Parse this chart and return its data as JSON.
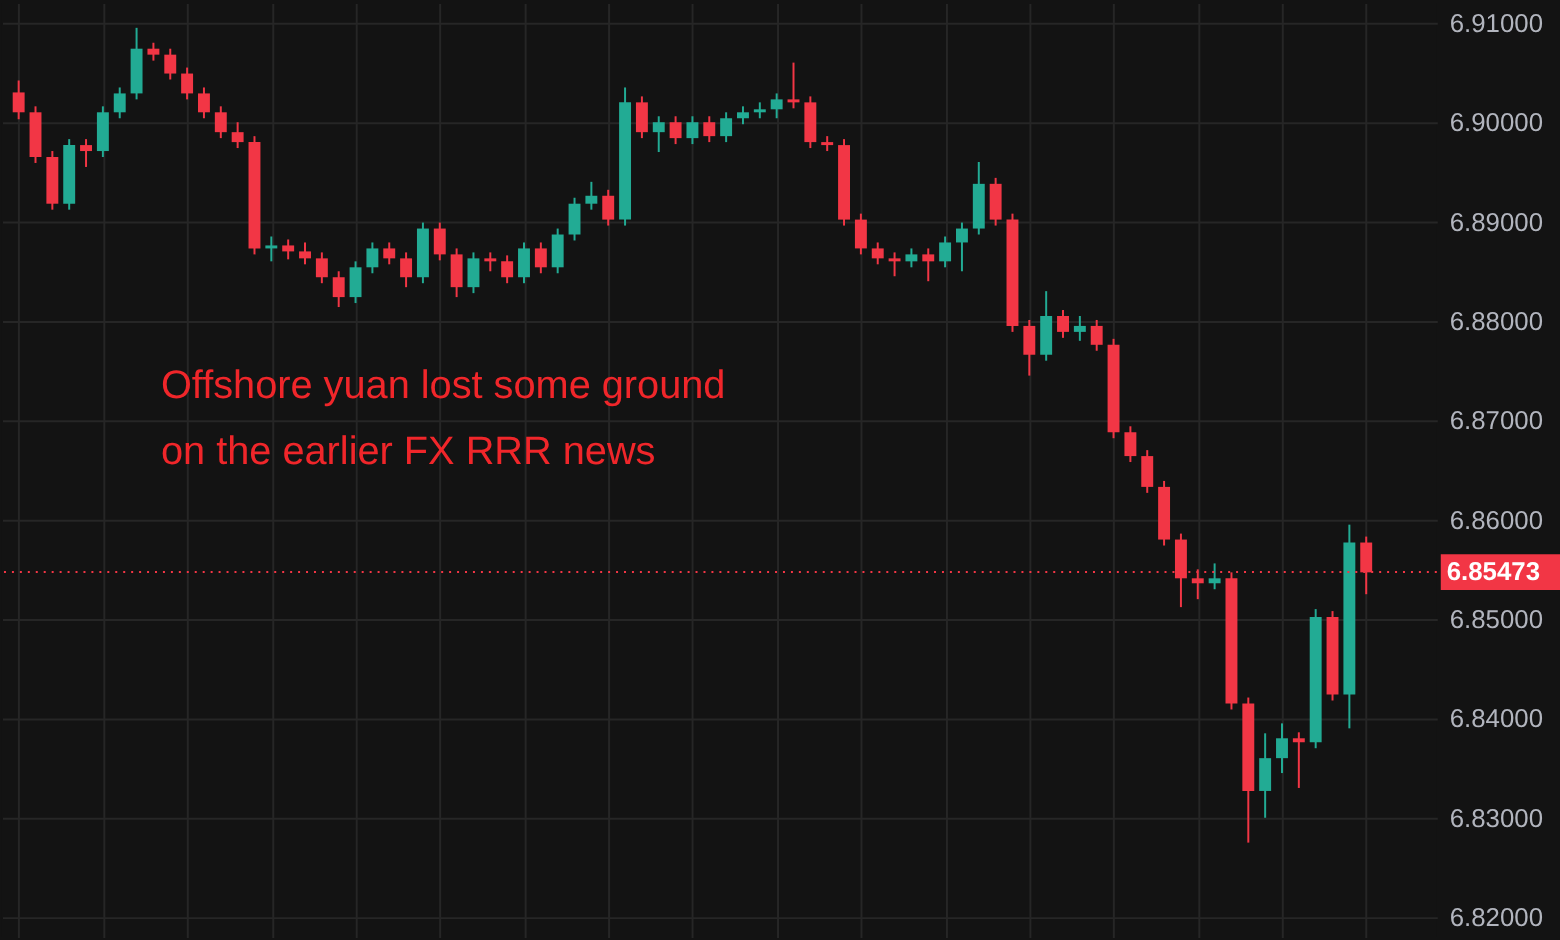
{
  "chart_data": {
    "type": "candlestick",
    "categories": [
      null,
      null,
      null,
      null,
      null,
      null,
      null,
      null,
      null,
      null,
      null,
      null,
      null,
      null,
      null,
      null,
      null,
      null,
      null,
      null,
      null,
      null,
      null,
      null,
      null,
      null,
      null,
      null,
      null,
      null,
      null,
      null,
      null,
      null,
      null,
      null,
      null,
      null,
      null,
      null,
      null,
      null,
      null,
      null,
      null,
      null,
      null,
      null,
      null,
      null,
      null,
      null,
      null,
      null,
      null,
      null,
      null,
      null,
      null,
      null,
      null,
      null,
      null,
      null,
      null,
      null,
      null,
      null,
      null,
      null,
      null,
      null,
      null,
      null,
      null,
      null,
      null,
      null,
      null,
      null,
      null
    ],
    "ohlc": [
      [
        6.903,
        6.9042,
        6.9003,
        6.901
      ],
      [
        6.901,
        6.9016,
        6.8959,
        6.8965
      ],
      [
        6.8965,
        6.8971,
        6.8912,
        6.8918
      ],
      [
        6.8918,
        6.8983,
        6.8912,
        6.8977
      ],
      [
        6.8977,
        6.8983,
        6.8955,
        6.8971
      ],
      [
        6.8971,
        6.9016,
        6.8965,
        6.901
      ],
      [
        6.901,
        6.9035,
        6.9004,
        6.9029
      ],
      [
        6.9029,
        6.9095,
        6.9023,
        6.9074
      ],
      [
        6.9074,
        6.908,
        6.9062,
        6.9068
      ],
      [
        6.9068,
        6.9074,
        6.9043,
        6.9049
      ],
      [
        6.9049,
        6.9055,
        6.9023,
        6.9029
      ],
      [
        6.9029,
        6.9035,
        6.9004,
        6.901
      ],
      [
        6.901,
        6.9016,
        6.8984,
        6.899
      ],
      [
        6.899,
        6.9,
        6.8974,
        6.898
      ],
      [
        6.898,
        6.8986,
        6.8867,
        6.8873
      ],
      [
        6.8873,
        6.8885,
        6.886,
        6.8876
      ],
      [
        6.8876,
        6.8882,
        6.8862,
        6.887
      ],
      [
        6.887,
        6.8879,
        6.8857,
        6.8863
      ],
      [
        6.8863,
        6.8869,
        6.8838,
        6.8844
      ],
      [
        6.8844,
        6.885,
        6.8814,
        6.8824
      ],
      [
        6.8824,
        6.886,
        6.8818,
        6.8854
      ],
      [
        6.8854,
        6.8879,
        6.8848,
        6.8873
      ],
      [
        6.8873,
        6.8879,
        6.8857,
        6.8863
      ],
      [
        6.8863,
        6.8869,
        6.8834,
        6.8844
      ],
      [
        6.8844,
        6.8899,
        6.8838,
        6.8893
      ],
      [
        6.8893,
        6.8899,
        6.8861,
        6.8867
      ],
      [
        6.8867,
        6.8873,
        6.8824,
        6.8834
      ],
      [
        6.8834,
        6.8869,
        6.8828,
        6.8863
      ],
      [
        6.8863,
        6.8869,
        6.885,
        6.886
      ],
      [
        6.886,
        6.8866,
        6.8838,
        6.8844
      ],
      [
        6.8844,
        6.8879,
        6.8838,
        6.8873
      ],
      [
        6.8873,
        6.8879,
        6.8848,
        6.8854
      ],
      [
        6.8854,
        6.8893,
        6.8848,
        6.8887
      ],
      [
        6.8887,
        6.8924,
        6.8881,
        6.8918
      ],
      [
        6.8918,
        6.894,
        6.8912,
        6.8926
      ],
      [
        6.8926,
        6.8932,
        6.8896,
        6.8902
      ],
      [
        6.8902,
        6.9035,
        6.8896,
        6.902
      ],
      [
        6.902,
        6.9026,
        6.8984,
        6.899
      ],
      [
        6.899,
        6.9006,
        6.897,
        6.9
      ],
      [
        6.9,
        6.9006,
        6.8978,
        6.8984
      ],
      [
        6.8984,
        6.9006,
        6.8978,
        6.9
      ],
      [
        6.9,
        6.9006,
        6.898,
        6.8986
      ],
      [
        6.8986,
        6.901,
        6.898,
        6.9004
      ],
      [
        6.9004,
        6.9016,
        6.8998,
        6.901
      ],
      [
        6.901,
        6.902,
        6.9004,
        6.9013
      ],
      [
        6.9013,
        6.9029,
        6.9004,
        6.9023
      ],
      [
        6.9023,
        6.906,
        6.9014,
        6.902
      ],
      [
        6.902,
        6.9026,
        6.8974,
        6.898
      ],
      [
        6.898,
        6.8986,
        6.8971,
        6.8977
      ],
      [
        6.8977,
        6.8983,
        6.8896,
        6.8902
      ],
      [
        6.8902,
        6.8908,
        6.8867,
        6.8873
      ],
      [
        6.8873,
        6.8879,
        6.8857,
        6.8863
      ],
      [
        6.8863,
        6.8869,
        6.8845,
        6.886
      ],
      [
        6.886,
        6.8873,
        6.8854,
        6.8867
      ],
      [
        6.8867,
        6.8873,
        6.884,
        6.886
      ],
      [
        6.886,
        6.8885,
        6.8854,
        6.8879
      ],
      [
        6.8879,
        6.8899,
        6.885,
        6.8893
      ],
      [
        6.8893,
        6.896,
        6.8887,
        6.8938
      ],
      [
        6.8938,
        6.8944,
        6.8896,
        6.8902
      ],
      [
        6.8902,
        6.8908,
        6.8789,
        6.8795
      ],
      [
        6.8795,
        6.8801,
        6.8745,
        6.8766
      ],
      [
        6.8766,
        6.883,
        6.876,
        6.8805
      ],
      [
        6.8805,
        6.8811,
        6.8783,
        6.8789
      ],
      [
        6.8789,
        6.8805,
        6.878,
        6.8795
      ],
      [
        6.8795,
        6.8801,
        6.877,
        6.8776
      ],
      [
        6.8776,
        6.8782,
        6.8682,
        6.8688
      ],
      [
        6.8688,
        6.8694,
        6.8658,
        6.8664
      ],
      [
        6.8664,
        6.867,
        6.8627,
        6.8633
      ],
      [
        6.8633,
        6.8639,
        6.8574,
        6.858
      ],
      [
        6.858,
        6.8586,
        6.8512,
        6.8541
      ],
      [
        6.8541,
        6.855,
        6.852,
        6.8536
      ],
      [
        6.8536,
        6.8556,
        6.853,
        6.8541
      ],
      [
        6.8541,
        6.8547,
        6.8409,
        6.8415
      ],
      [
        6.8415,
        6.8421,
        6.8275,
        6.8327
      ],
      [
        6.8327,
        6.8385,
        6.83,
        6.836
      ],
      [
        6.836,
        6.8395,
        6.8345,
        6.838
      ],
      [
        6.838,
        6.8386,
        6.833,
        6.8376
      ],
      [
        6.8376,
        6.851,
        6.837,
        6.8502
      ],
      [
        6.8502,
        6.8508,
        6.8418,
        6.8424
      ],
      [
        6.8424,
        6.8595,
        6.839,
        6.8577
      ],
      [
        6.8577,
        6.8583,
        6.8525,
        6.8547
      ]
    ],
    "colors": [
      "#f23645",
      "#f23645",
      "#f23645",
      "#22ab94",
      "#f23645",
      "#22ab94",
      "#22ab94",
      "#22ab94",
      "#f23645",
      "#f23645",
      "#f23645",
      "#f23645",
      "#f23645",
      "#f23645",
      "#f23645",
      "#22ab94",
      "#f23645",
      "#f23645",
      "#f23645",
      "#f23645",
      "#22ab94",
      "#22ab94",
      "#f23645",
      "#f23645",
      "#22ab94",
      "#f23645",
      "#f23645",
      "#22ab94",
      "#f23645",
      "#f23645",
      "#22ab94",
      "#f23645",
      "#22ab94",
      "#22ab94",
      "#22ab94",
      "#f23645",
      "#22ab94",
      "#f23645",
      "#22ab94",
      "#f23645",
      "#22ab94",
      "#f23645",
      "#22ab94",
      "#22ab94",
      "#22ab94",
      "#22ab94",
      "#f23645",
      "#f23645",
      "#f23645",
      "#f23645",
      "#f23645",
      "#f23645",
      "#f23645",
      "#22ab94",
      "#f23645",
      "#22ab94",
      "#22ab94",
      "#22ab94",
      "#f23645",
      "#f23645",
      "#f23645",
      "#22ab94",
      "#f23645",
      "#22ab94",
      "#f23645",
      "#f23645",
      "#f23645",
      "#f23645",
      "#f23645",
      "#f23645",
      "#f23645",
      "#22ab94",
      "#f23645",
      "#f23645",
      "#22ab94",
      "#22ab94",
      "#f23645",
      "#22ab94",
      "#f23645",
      "#22ab94",
      "#f23645"
    ],
    "ylim": [
      6.818,
      6.912
    ],
    "yticks": [
      {
        "value": 6.82,
        "label": "6.82000"
      },
      {
        "value": 6.83,
        "label": "6.83000"
      },
      {
        "value": 6.84,
        "label": "6.84000"
      },
      {
        "value": 6.85,
        "label": "6.85000"
      },
      {
        "value": 6.86,
        "label": "6.86000"
      },
      {
        "value": 6.87,
        "label": "6.87000"
      },
      {
        "value": 6.88,
        "label": "6.88000"
      },
      {
        "value": 6.89,
        "label": "6.89000"
      },
      {
        "value": 6.9,
        "label": "6.90000"
      },
      {
        "value": 6.91,
        "label": "6.91000"
      }
    ],
    "ref_lines": [
      {
        "axis": "y",
        "value": 6.85473,
        "label": "6.85473",
        "color": "#f23645",
        "line_style": "dotted"
      }
    ],
    "annotations": [
      "Offshore yuan lost some ground\non the earlier FX RRR news"
    ],
    "grid": true,
    "tick_labels": "y"
  }
}
